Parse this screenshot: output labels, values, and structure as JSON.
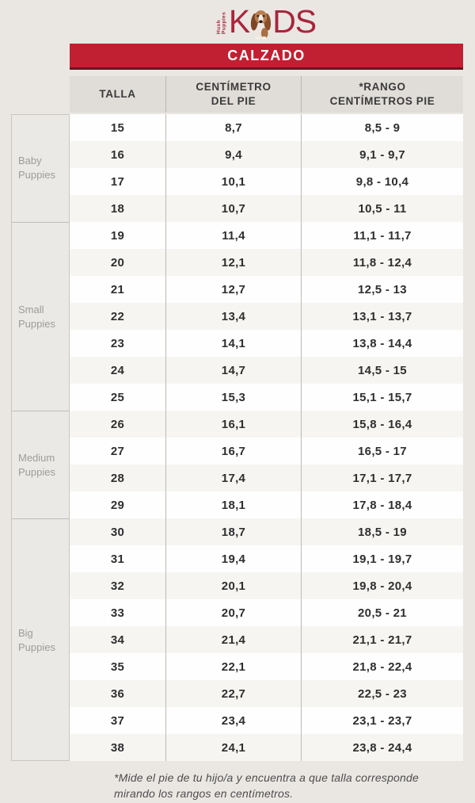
{
  "logo": {
    "brand_vertical": "Hush Puppies",
    "letter_k": "K",
    "letters_ds": "DS",
    "color": "#a8263c"
  },
  "banner": {
    "label": "CALZADO",
    "bg": "#c12032"
  },
  "table": {
    "headers": [
      "TALLA",
      "CENTÍMETRO\nDEL PIE",
      "*RANGO\nCENTÍMETROS PIE"
    ],
    "groups": [
      {
        "label": "Baby Puppies",
        "rows": [
          [
            "15",
            "8,7",
            "8,5 - 9"
          ],
          [
            "16",
            "9,4",
            "9,1 - 9,7"
          ],
          [
            "17",
            "10,1",
            "9,8 - 10,4"
          ],
          [
            "18",
            "10,7",
            "10,5 - 11"
          ]
        ]
      },
      {
        "label": "Small Puppies",
        "rows": [
          [
            "19",
            "11,4",
            "11,1 - 11,7"
          ],
          [
            "20",
            "12,1",
            "11,8 - 12,4"
          ],
          [
            "21",
            "12,7",
            "12,5 - 13"
          ],
          [
            "22",
            "13,4",
            "13,1 - 13,7"
          ],
          [
            "23",
            "14,1",
            "13,8 - 14,4"
          ],
          [
            "24",
            "14,7",
            "14,5 - 15"
          ],
          [
            "25",
            "15,3",
            "15,1 - 15,7"
          ]
        ]
      },
      {
        "label": "Medium Puppies",
        "rows": [
          [
            "26",
            "16,1",
            "15,8 - 16,4"
          ],
          [
            "27",
            "16,7",
            "16,5 - 17"
          ],
          [
            "28",
            "17,4",
            "17,1 - 17,7"
          ],
          [
            "29",
            "18,1",
            "17,8 - 18,4"
          ]
        ]
      },
      {
        "label": "Big Puppies",
        "rows": [
          [
            "30",
            "18,7",
            "18,5 - 19"
          ],
          [
            "31",
            "19,4",
            "19,1 - 19,7"
          ],
          [
            "32",
            "20,1",
            "19,8 - 20,4"
          ],
          [
            "33",
            "20,7",
            "20,5 - 21"
          ],
          [
            "34",
            "21,4",
            "21,1 - 21,7"
          ],
          [
            "35",
            "22,1",
            "21,8 - 22,4"
          ],
          [
            "36",
            "22,7",
            "22,5 - 23"
          ],
          [
            "37",
            "23,4",
            "23,1 - 23,7"
          ],
          [
            "38",
            "24,1",
            "23,8 - 24,4"
          ]
        ]
      }
    ]
  },
  "footnote": "*Mide el pie de tu hijo/a y encuentra a que talla corresponde\nmirando los rangos en centímetros."
}
